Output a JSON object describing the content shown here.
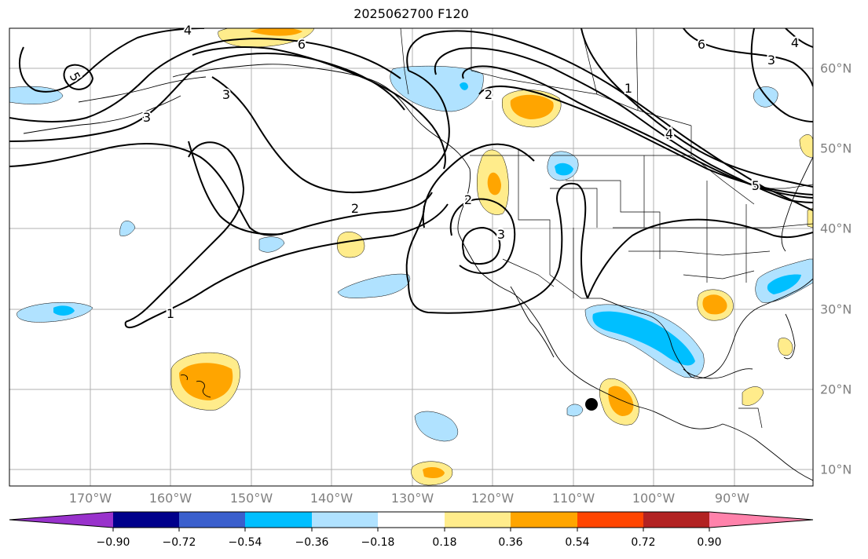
{
  "title": "2025062700 F120",
  "lon_labels": [
    "170°W",
    "160°W",
    "150°W",
    "140°W",
    "130°W",
    "120°W",
    "110°W",
    "100°W",
    "90°W"
  ],
  "lat_labels": [
    "60°N",
    "50°N",
    "40°N",
    "30°N",
    "20°N",
    "10°N"
  ],
  "colorbar": {
    "ticks": [
      "−0.90",
      "−0.72",
      "−0.54",
      "−0.36",
      "−0.18",
      "0.18",
      "0.36",
      "0.54",
      "0.72",
      "0.90"
    ],
    "colors": [
      "#9932cc",
      "#00008b",
      "#3a5fcd",
      "#00bfff",
      "#b0e2ff",
      "#ffffff",
      "#ffec8b",
      "#ffa500",
      "#ff4500",
      "#b22222",
      "#ff82ab"
    ]
  },
  "contour_labels": [
    "6",
    "5",
    "4",
    "3",
    "2",
    "1",
    "3",
    "2",
    "3",
    "2",
    "1",
    "6",
    "5",
    "4",
    "3",
    "4"
  ],
  "colors": {
    "grid": "#b0b0b0",
    "contour": "#000000",
    "tick_label": "#808080"
  }
}
